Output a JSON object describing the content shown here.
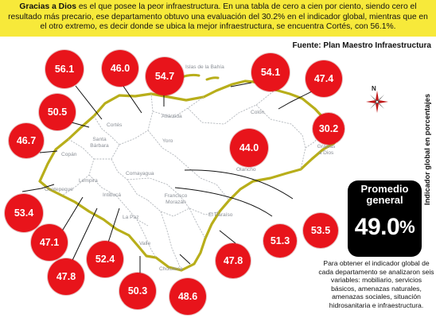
{
  "header": {
    "lead": "Gracias a Dios",
    "text": " es el que posee la peor infraestructura. En una tabla de cero a cien por ciento, siendo cero el resultado más precario, ese departamento obtuvo una evaluación del 30.2% en el indicador global, mientras que en el otro extremo, es decir donde se ubica la mejor infraestructura, se encuentra Cortés, con 56.1%."
  },
  "source": "Fuente: Plan Maestro Infraestructura",
  "axis_label": "Indicador global en porcentajes",
  "compass_label": "N",
  "average": {
    "line1": "Promedio",
    "line2": "general",
    "value": "49.0",
    "unit": "%"
  },
  "note": "Para obtener el indicador global de cada departamento se analizaron seis variables: mobiliario, servicios básicos, amenazas naturales, amenazas sociales, situación hidrosanitaria e infraestructura.",
  "colors": {
    "header_bg": "#f7e93a",
    "badge": "#e8141b",
    "land": "#ffffff",
    "border": "#b8ae1a",
    "inner_border": "#b5b9be",
    "water": "#ffffff"
  },
  "departments": [
    {
      "id": "cortes",
      "name": "Cortés",
      "value": "56.1"
    },
    {
      "id": "yoro",
      "name": "Yoro",
      "value": "46.0"
    },
    {
      "id": "atlantida",
      "name": "Atlántida",
      "value": "54.7"
    },
    {
      "id": "islas",
      "name": "Islas de la Bahía",
      "value": "54.1"
    },
    {
      "id": "colon",
      "name": "Colón",
      "value": "47.4"
    },
    {
      "id": "santa-barbara",
      "name": "Santa Bárbara",
      "value": "50.5"
    },
    {
      "id": "copan",
      "name": "Copán",
      "value": "46.7"
    },
    {
      "id": "olancho",
      "name": "Olancho",
      "value": "44.0"
    },
    {
      "id": "gracias",
      "name": "Gracias a Dios",
      "value": "30.2"
    },
    {
      "id": "ocotepeque",
      "name": "Ocotepeque",
      "value": "53.4"
    },
    {
      "id": "lempira",
      "name": "Lempira",
      "value": "47.1"
    },
    {
      "id": "intibuca",
      "name": "Intibucá",
      "value": "47.8"
    },
    {
      "id": "la-paz",
      "name": "La Paz",
      "value": "52.4"
    },
    {
      "id": "valle",
      "name": "Valle",
      "value": "50.3"
    },
    {
      "id": "choluteca",
      "name": "Choluteca",
      "value": "48.6"
    },
    {
      "id": "el-paraiso",
      "name": "El Paraíso",
      "value": "47.8"
    },
    {
      "id": "francisco-morazan",
      "name": "Francisco Morazán",
      "value": "51.3"
    },
    {
      "id": "comayagua",
      "name": "Comayagua",
      "value": "53.5"
    }
  ]
}
